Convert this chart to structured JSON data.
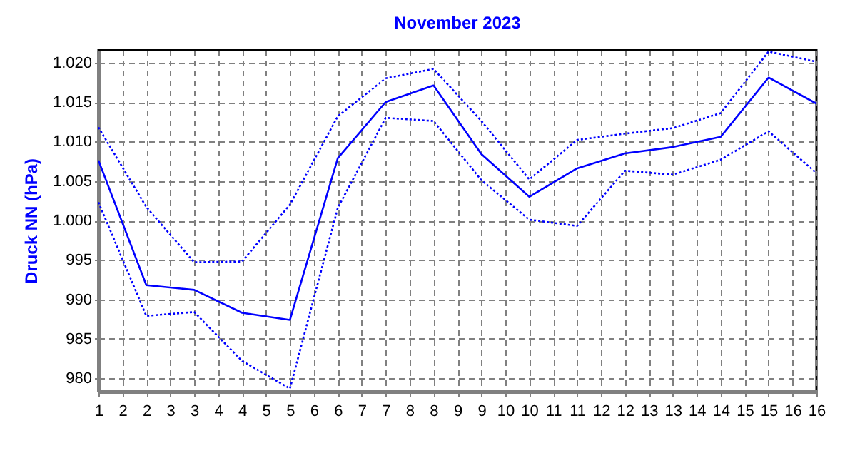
{
  "chart_data": {
    "type": "line",
    "title": "November 2023",
    "ylabel": "Druck NN  (hPa)",
    "x": [
      1,
      2,
      3,
      4,
      5,
      6,
      7,
      8,
      9,
      10,
      11,
      12,
      13,
      14,
      15,
      16
    ],
    "series": [
      {
        "color": "#0000ff",
        "line_style": "dotted",
        "values": [
          1011.8,
          1001.7,
          994.7,
          994.8,
          1002.0,
          1013.2,
          1018.0,
          1019.2,
          1012.6,
          1005.2,
          1010.2,
          1011.0,
          1011.7,
          1013.6,
          1021.4,
          1020.1
        ]
      },
      {
        "color": "#0000ff",
        "line_style": "solid",
        "values": [
          1007.6,
          991.8,
          991.2,
          988.3,
          987.4,
          1007.9,
          1015.0,
          1017.1,
          1008.4,
          1003.0,
          1006.6,
          1008.5,
          1009.3,
          1010.6,
          1018.1,
          1014.8
        ]
      },
      {
        "color": "#0000ff",
        "line_style": "dotted",
        "values": [
          1002.3,
          987.9,
          988.4,
          982.2,
          978.7,
          1001.6,
          1013.0,
          1012.6,
          1005.1,
          1000.1,
          999.3,
          1006.3,
          1005.8,
          1007.7,
          1011.3,
          1006.0
        ]
      }
    ],
    "xlim": [
      1,
      16
    ],
    "xticks": [
      1,
      {
        "value": 1.5,
        "label": "2"
      },
      2,
      {
        "value": 2.5,
        "label": "3"
      },
      3,
      {
        "value": 3.5,
        "label": "4"
      },
      4,
      {
        "value": 4.5,
        "label": "5"
      },
      5,
      {
        "value": 5.5,
        "label": "6"
      },
      6,
      {
        "value": 6.5,
        "label": "7"
      },
      7,
      {
        "value": 7.5,
        "label": "8"
      },
      8,
      {
        "value": 8.5,
        "label": "9"
      },
      9,
      {
        "value": 9.5,
        "label": "10"
      },
      10,
      {
        "value": 10.5,
        "label": "11"
      },
      11,
      {
        "value": 11.5,
        "label": "12"
      },
      12,
      {
        "value": 12.5,
        "label": "13"
      },
      13,
      {
        "value": 13.5,
        "label": "14"
      },
      14,
      {
        "value": 14.5,
        "label": "15"
      },
      15,
      {
        "value": 15.5,
        "label": "16"
      },
      16
    ],
    "ylim": [
      978.4,
      1021.6
    ],
    "yticks": [
      980,
      985,
      990,
      995,
      {
        "value": 1000,
        "label": "1.000"
      },
      {
        "value": 1005,
        "label": "1.005"
      },
      {
        "value": 1010,
        "label": "1.010"
      },
      {
        "value": 1015,
        "label": "1.015"
      },
      {
        "value": 1020,
        "label": "1.020"
      }
    ],
    "grid": true,
    "legend": false
  }
}
